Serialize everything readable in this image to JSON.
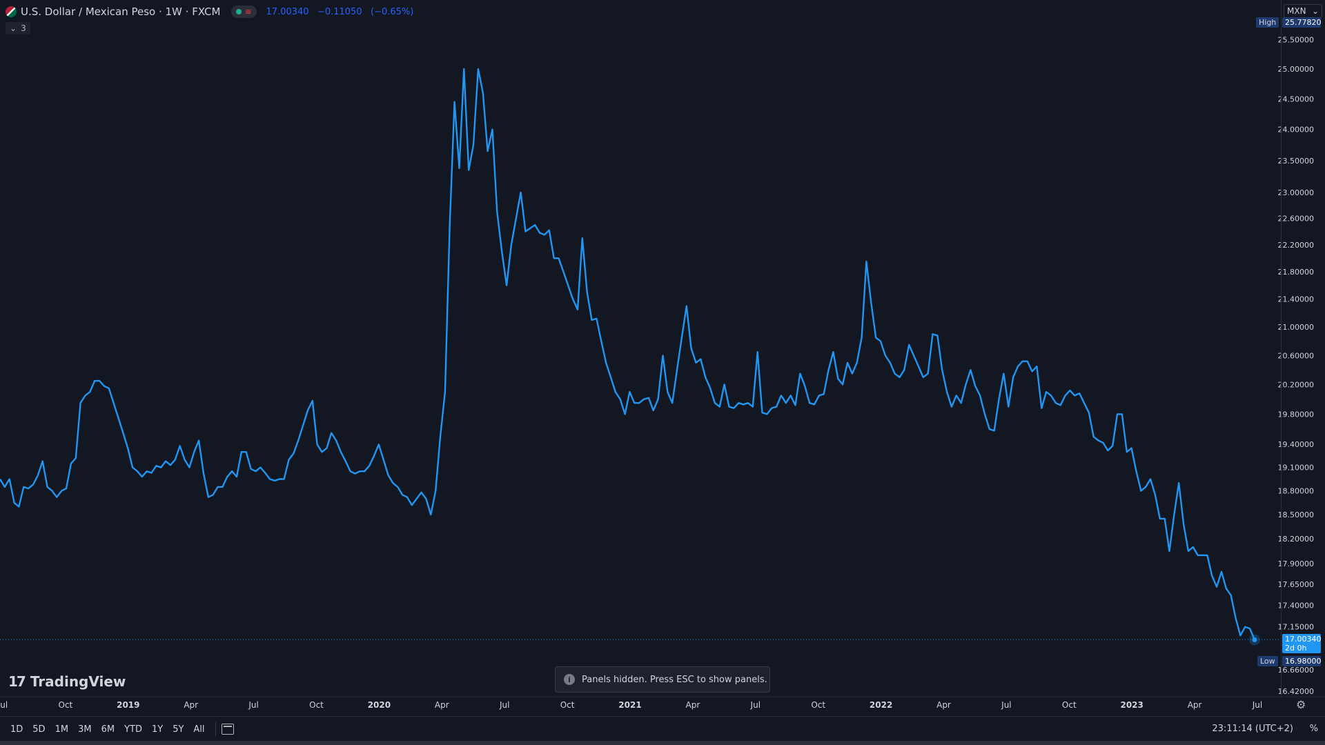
{
  "header": {
    "symbol_title": "U.S. Dollar / Mexican Peso · 1W · FXCM",
    "last_price": "17.00340",
    "change": "−0.11050",
    "change_pct": "(−0.65%)",
    "indicators_collapse": "3",
    "currency": "MXN"
  },
  "price_axis": {
    "high_label": "High",
    "high_value": "25.77820",
    "low_label": "Low",
    "low_value": "16.98000",
    "last_value": "17.00340",
    "last_countdown": "2d 0h"
  },
  "toast": {
    "text": "Panels hidden. Press ESC to show panels."
  },
  "logo": {
    "text": "TradingView"
  },
  "bottom_bar": {
    "ranges": [
      "1D",
      "5D",
      "1M",
      "3M",
      "6M",
      "YTD",
      "1Y",
      "5Y",
      "All"
    ],
    "clock": "23:11:14 (UTC+2)",
    "percent": "%"
  },
  "colors": {
    "background": "#131722",
    "line": "#2196f3",
    "grid": "#2a2e39"
  },
  "chart_data": {
    "type": "line",
    "series": [
      {
        "values": [
          18.95,
          18.85,
          18.95,
          18.65,
          18.6,
          18.85,
          18.83,
          18.88,
          19.0,
          19.18,
          18.85,
          18.8,
          18.72,
          18.8,
          18.83,
          19.15,
          19.22,
          19.95,
          20.05,
          20.1,
          20.25,
          20.25,
          20.18,
          20.15,
          19.95,
          19.75,
          19.55,
          19.35,
          19.1,
          19.05,
          18.98,
          19.05,
          19.03,
          19.12,
          19.1,
          19.18,
          19.13,
          19.2,
          19.38,
          19.2,
          19.1,
          19.3,
          19.45,
          19.02,
          18.72,
          18.75,
          18.85,
          18.85,
          18.98,
          19.05,
          18.98,
          19.3,
          19.3,
          19.08,
          19.05,
          19.1,
          19.03,
          18.95,
          18.93,
          18.95,
          18.95,
          19.2,
          19.28,
          19.45,
          19.65,
          19.85,
          19.98,
          19.4,
          19.3,
          19.35,
          19.55,
          19.45,
          19.3,
          19.18,
          19.05,
          19.02,
          19.05,
          19.05,
          19.12,
          19.25,
          19.4,
          19.2,
          19.0,
          18.9,
          18.85,
          18.75,
          18.72,
          18.62,
          18.7,
          18.78,
          18.7,
          18.5,
          18.8,
          19.5,
          20.1,
          22.5,
          24.45,
          23.38,
          25.0,
          23.35,
          23.75,
          25.0,
          24.6,
          23.65,
          24.0,
          22.7,
          22.1,
          21.6,
          22.2,
          22.6,
          23.0,
          22.4,
          22.45,
          22.5,
          22.38,
          22.35,
          22.42,
          22.0,
          22.0,
          21.8,
          21.6,
          21.4,
          21.25,
          22.3,
          21.5,
          21.1,
          21.12,
          20.8,
          20.5,
          20.3,
          20.1,
          20.0,
          19.8,
          20.1,
          19.95,
          19.95,
          20.0,
          20.02,
          19.85,
          20.0,
          20.6,
          20.1,
          19.95,
          20.4,
          20.85,
          21.3,
          20.7,
          20.5,
          20.55,
          20.3,
          20.15,
          19.95,
          19.9,
          20.2,
          19.9,
          19.88,
          19.95,
          19.93,
          19.95,
          19.9,
          20.65,
          19.82,
          19.8,
          19.88,
          19.9,
          20.05,
          19.95,
          20.05,
          19.92,
          20.35,
          20.18,
          19.95,
          19.93,
          20.05,
          20.07,
          20.4,
          20.65,
          20.28,
          20.2,
          20.5,
          20.35,
          20.5,
          20.85,
          21.95,
          21.35,
          20.85,
          20.8,
          20.6,
          20.5,
          20.35,
          20.3,
          20.4,
          20.75,
          20.6,
          20.45,
          20.3,
          20.35,
          20.9,
          20.88,
          20.4,
          20.1,
          19.9,
          20.05,
          19.95,
          20.2,
          20.4,
          20.18,
          20.05,
          19.8,
          19.6,
          19.58,
          20.0,
          20.35,
          19.9,
          20.3,
          20.45,
          20.52,
          20.52,
          20.38,
          20.45,
          19.88,
          20.1,
          20.05,
          19.95,
          19.92,
          20.05,
          20.12,
          20.05,
          20.08,
          19.95,
          19.82,
          19.5,
          19.45,
          19.42,
          19.32,
          19.38,
          19.8,
          19.8,
          19.3,
          19.35,
          19.05,
          18.8,
          18.85,
          18.95,
          18.75,
          18.45,
          18.45,
          18.05,
          18.5,
          18.9,
          18.38,
          18.05,
          18.1,
          18.0,
          18.0,
          18.0,
          17.75,
          17.62,
          17.8,
          17.6,
          17.52,
          17.25,
          17.05,
          17.15,
          17.13,
          17.0
        ]
      }
    ],
    "x_tick_labels": [
      "Jul",
      "Oct",
      "2019",
      "Apr",
      "Jul",
      "Oct",
      "2020",
      "Apr",
      "Jul",
      "Oct",
      "2021",
      "Apr",
      "Jul",
      "Oct",
      "2022",
      "Apr",
      "Jul",
      "Oct",
      "2023",
      "Apr",
      "Jul"
    ],
    "y_tick_labels": [
      "25.50000",
      "25.00000",
      "24.50000",
      "24.00000",
      "23.50000",
      "23.00000",
      "22.60000",
      "22.20000",
      "21.80000",
      "21.40000",
      "21.00000",
      "20.60000",
      "20.20000",
      "19.80000",
      "19.40000",
      "19.10000",
      "18.80000",
      "18.50000",
      "18.20000",
      "17.90000",
      "17.65000",
      "17.40000",
      "17.15000",
      "16.66000",
      "16.42000"
    ],
    "y_scale": "log",
    "grid": false,
    "high": 25.7782,
    "low": 16.98,
    "last": 17.0034
  }
}
